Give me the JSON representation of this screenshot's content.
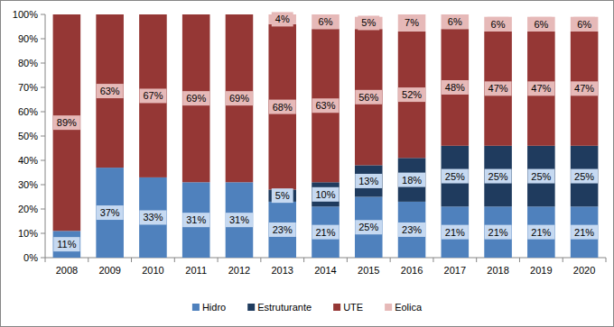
{
  "chart_data": {
    "type": "bar",
    "stacked": true,
    "data_labels": true,
    "grid": false,
    "legend": "bottom",
    "categories": [
      "2008",
      "2009",
      "2010",
      "2011",
      "2012",
      "2013",
      "2014",
      "2015",
      "2016",
      "2017",
      "2018",
      "2019",
      "2020"
    ],
    "ylim": [
      0,
      100
    ],
    "yticks": [
      {
        "value": 0,
        "label": "0%"
      },
      {
        "value": 10,
        "label": "10%"
      },
      {
        "value": 20,
        "label": "20%"
      },
      {
        "value": 30,
        "label": "30%"
      },
      {
        "value": 40,
        "label": "40%"
      },
      {
        "value": 50,
        "label": "50%"
      },
      {
        "value": 60,
        "label": "60%"
      },
      {
        "value": 70,
        "label": "70%"
      },
      {
        "value": 80,
        "label": "80%"
      },
      {
        "value": 90,
        "label": "90%"
      },
      {
        "value": 100,
        "label": "100%"
      }
    ],
    "series": [
      {
        "name": "Hidro",
        "color": "#4f81bd",
        "values": [
          11,
          37,
          33,
          31,
          31,
          23,
          21,
          25,
          23,
          21,
          21,
          21,
          21
        ],
        "value_labels": [
          "11%",
          "37%",
          "33%",
          "31%",
          "31%",
          "23%",
          "21%",
          "25%",
          "23%",
          "21%",
          "21%",
          "21%",
          "21%"
        ]
      },
      {
        "name": "Estruturante",
        "color": "#1f3b5e",
        "values": [
          null,
          null,
          null,
          null,
          null,
          5,
          10,
          13,
          18,
          25,
          25,
          25,
          25
        ],
        "value_labels": [
          null,
          null,
          null,
          null,
          null,
          "5%",
          "10%",
          "13%",
          "18%",
          "25%",
          "25%",
          "25%",
          "25%"
        ]
      },
      {
        "name": "UTE",
        "color": "#953735",
        "values": [
          89,
          63,
          67,
          69,
          69,
          68,
          63,
          56,
          52,
          48,
          47,
          47,
          47
        ],
        "value_labels": [
          "89%",
          "63%",
          "67%",
          "69%",
          "69%",
          "68%",
          "63%",
          "56%",
          "52%",
          "48%",
          "47%",
          "47%",
          "47%"
        ]
      },
      {
        "name": "Eolica",
        "color": "#e6b9b8",
        "values": [
          null,
          null,
          null,
          null,
          null,
          4,
          6,
          5,
          7,
          6,
          6,
          6,
          6
        ],
        "value_labels": [
          null,
          null,
          null,
          null,
          null,
          "4%",
          "6%",
          "5%",
          "7%",
          "6%",
          "6%",
          "6%",
          "6%"
        ]
      }
    ]
  }
}
